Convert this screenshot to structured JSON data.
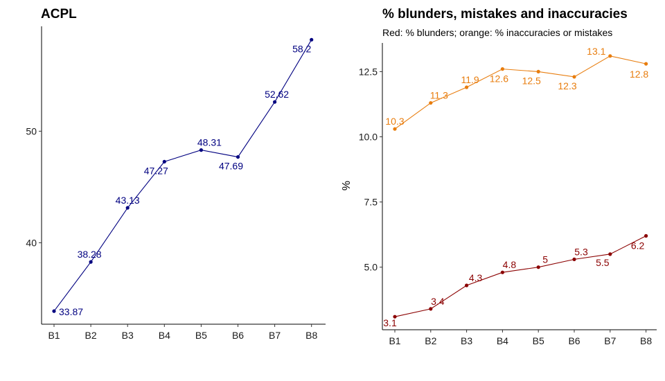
{
  "chart_data": [
    {
      "type": "line",
      "title": "ACPL",
      "subtitle": "",
      "xlabel": "",
      "ylabel": "",
      "categories": [
        "B1",
        "B2",
        "B3",
        "B4",
        "B5",
        "B6",
        "B7",
        "B8"
      ],
      "ylim": [
        32.7,
        59.4
      ],
      "yticks": [
        40,
        50
      ],
      "grid": false,
      "legend": "none",
      "series": [
        {
          "color": "#000080",
          "values": [
            33.87,
            38.28,
            43.13,
            47.27,
            48.31,
            47.69,
            52.62,
            58.2
          ],
          "labels": [
            "33.87",
            "38.28",
            "43.13",
            "47.27",
            "48.31",
            "47.69",
            "52.62",
            "58.2"
          ]
        }
      ]
    },
    {
      "type": "line",
      "title": "% blunders, mistakes and inaccuracies",
      "subtitle": "Red: % blunders; orange: % inaccuracies or mistakes",
      "xlabel": "",
      "ylabel": "%",
      "categories": [
        "B1",
        "B2",
        "B3",
        "B4",
        "B5",
        "B6",
        "B7",
        "B8"
      ],
      "ylim": [
        2.6,
        13.6
      ],
      "yticks": [
        5.0,
        7.5,
        10.0,
        12.5
      ],
      "ytick_labels": [
        "5.0",
        "7.5",
        "10.0",
        "12.5"
      ],
      "grid": false,
      "legend": "none",
      "series": [
        {
          "color": "#E87D0E",
          "values": [
            10.3,
            11.3,
            11.9,
            12.6,
            12.5,
            12.3,
            13.1,
            12.8
          ],
          "labels": [
            "10.3",
            "11.3",
            "11.9",
            "12.6",
            "12.5",
            "12.3",
            "13.1",
            "12.8"
          ]
        },
        {
          "color": "#8B0000",
          "values": [
            3.1,
            3.4,
            4.3,
            4.8,
            5.0,
            5.3,
            5.5,
            6.2
          ],
          "labels": [
            "3.1",
            "3.4",
            "4.3",
            "4.8",
            "5",
            "5.3",
            "5.5",
            "6.2"
          ]
        }
      ]
    }
  ]
}
